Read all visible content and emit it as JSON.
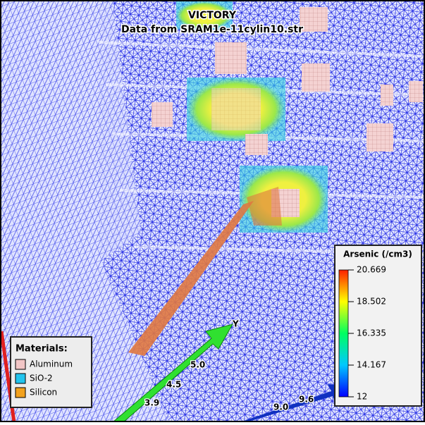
{
  "header": {
    "title": "VICTORY",
    "subtitle": "Data from SRAM1e-11cylin10.str"
  },
  "materials": {
    "title": "Materials:",
    "items": [
      {
        "label": "Aluminum",
        "color": "#f2c6c6"
      },
      {
        "label": "SiO-2",
        "color": "#22c4ee"
      },
      {
        "label": "Silicon",
        "color": "#f2a21e"
      }
    ]
  },
  "colorbar": {
    "title": "Arsenic (/cm3)",
    "lim": [
      12,
      20.669
    ],
    "ticks": [
      20.669,
      18.502,
      16.335,
      14.167,
      12
    ]
  },
  "axes": {
    "y_label": "Y",
    "green_ticks": [
      "5.0",
      "4.5",
      "3.9"
    ],
    "blue_ticks": [
      "9.0",
      "9.6"
    ]
  }
}
